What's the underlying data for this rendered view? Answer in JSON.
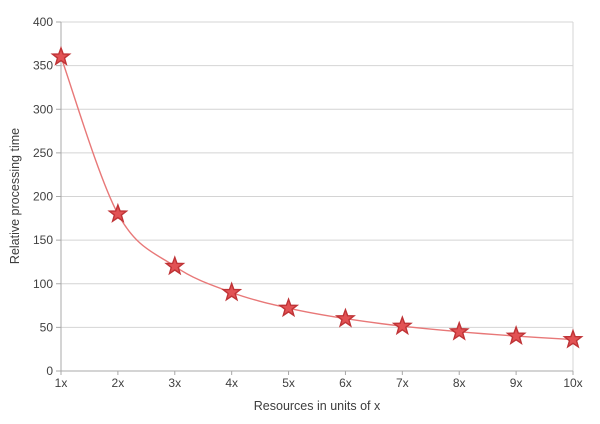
{
  "chart_data": {
    "type": "line",
    "title": "",
    "xlabel": "Resources in units of x",
    "ylabel": "Relative processing time",
    "categories": [
      "1x",
      "2x",
      "3x",
      "4x",
      "5x",
      "6x",
      "7x",
      "8x",
      "9x",
      "10x"
    ],
    "series": [
      {
        "name": "Relative processing time",
        "values": [
          360,
          180,
          120,
          90,
          72,
          60,
          51.4,
          45,
          40,
          36
        ]
      }
    ],
    "ylim": [
      0,
      400
    ],
    "ytick_step": 50,
    "ytick_labels": [
      "0",
      "50",
      "100",
      "150",
      "200",
      "250",
      "300",
      "350",
      "400"
    ],
    "grid": "horizontal-only",
    "legend": "none",
    "marker": "star",
    "line_style": "smooth",
    "colors": {
      "line": "#e87878",
      "marker_fill": "#e25254",
      "marker_stroke": "#bf3336",
      "gridline": "#d4d4d4",
      "axis": "#a8a8a8",
      "text": "#404040",
      "background": "#ffffff"
    }
  }
}
